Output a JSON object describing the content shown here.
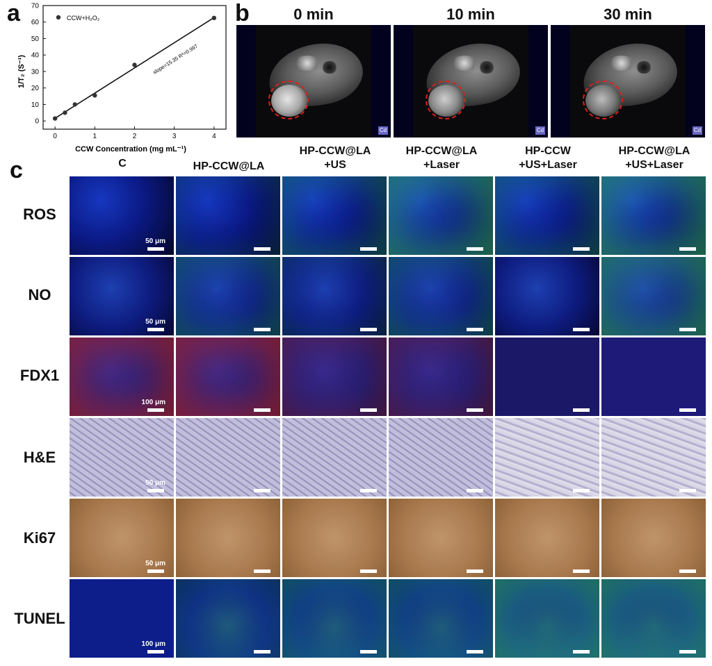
{
  "panel_a": {
    "letter": "a",
    "chart_data": {
      "type": "scatter",
      "ylabel": "1/T₂ (S⁻¹)",
      "xlabel": "CCW Concentration (mg mL⁻¹)",
      "xlim": [
        -0.3,
        4.3
      ],
      "ylim": [
        -5,
        70
      ],
      "x_ticks": [
        0,
        1,
        2,
        3,
        4
      ],
      "y_ticks": [
        0,
        10,
        20,
        30,
        40,
        50,
        60,
        70
      ],
      "series": [
        {
          "name": "CCW+H₂O₂",
          "x": [
            0,
            0.25,
            0.5,
            1,
            2,
            4
          ],
          "y": [
            1.5,
            5,
            10,
            15.5,
            34,
            62.5
          ]
        }
      ],
      "fit": {
        "x": [
          0,
          4
        ],
        "y": [
          1.6,
          62.7
        ]
      },
      "annotation": "slope=15.35 R²=0.997",
      "legend_position": "top-left"
    }
  },
  "panel_b": {
    "letter": "b",
    "times": [
      "0 min",
      "10 min",
      "30 min"
    ],
    "cd_badge": "Cd"
  },
  "panel_c": {
    "letter": "c",
    "columns": [
      {
        "line1": "C",
        "line2": ""
      },
      {
        "line1": "HP-CCW@LA",
        "line2": ""
      },
      {
        "line1": "HP-CCW@LA",
        "line2": "+US"
      },
      {
        "line1": "HP-CCW@LA",
        "line2": "+Laser"
      },
      {
        "line1": "HP-CCW",
        "line2": "+US+Laser"
      },
      {
        "line1": "HP-CCW@LA",
        "line2": "+US+Laser"
      }
    ],
    "rows": [
      {
        "label": "ROS",
        "scale": "50 μm"
      },
      {
        "label": "NO",
        "scale": "50 μm"
      },
      {
        "label": "FDX1",
        "scale": "100 μm"
      },
      {
        "label": "H&E",
        "scale": "50 μm"
      },
      {
        "label": "Ki67",
        "scale": "50 μm"
      },
      {
        "label": "TUNEL",
        "scale": "100 μm"
      }
    ]
  }
}
